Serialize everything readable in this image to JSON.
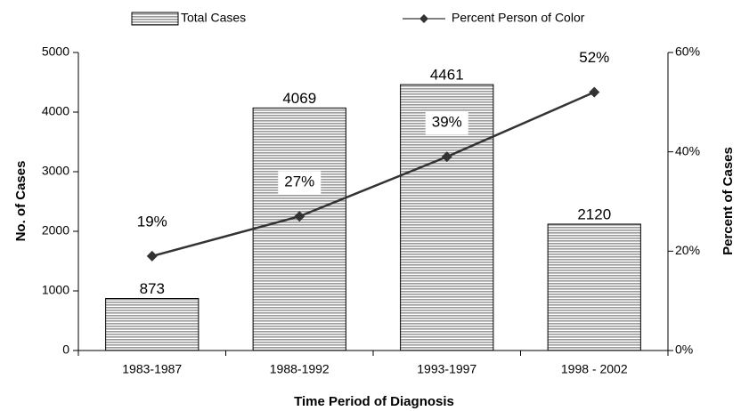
{
  "chart_data": {
    "type": "bar",
    "categories": [
      "1983-1987",
      "1988-1992",
      "1993-1997",
      "1998 - 2002"
    ],
    "series": [
      {
        "name": "Total Cases",
        "color": "#b0b0b0",
        "values": [
          873,
          4069,
          4461,
          2120
        ]
      },
      {
        "name": "Percent Person of Color",
        "type": "line",
        "axis": "y2",
        "color": "#333333",
        "values": [
          19,
          27,
          39,
          52
        ],
        "value_labels": [
          "19%",
          "27%",
          "39%",
          "52%"
        ]
      }
    ],
    "ylim": [
      0,
      5000
    ],
    "yticks": [
      0,
      1000,
      2000,
      3000,
      4000,
      5000
    ],
    "y2lim": [
      0,
      60
    ],
    "y2ticks": [
      {
        "value": 0,
        "label": "0%"
      },
      {
        "value": 20,
        "label": "20%"
      },
      {
        "value": 40,
        "label": "40%"
      },
      {
        "value": 60,
        "label": "60%"
      }
    ],
    "ylabel": "No. of Cases",
    "y2label": "Percent of Cases",
    "xlabel": "Time Period of Diagnosis",
    "legend": "top",
    "grid": false
  }
}
